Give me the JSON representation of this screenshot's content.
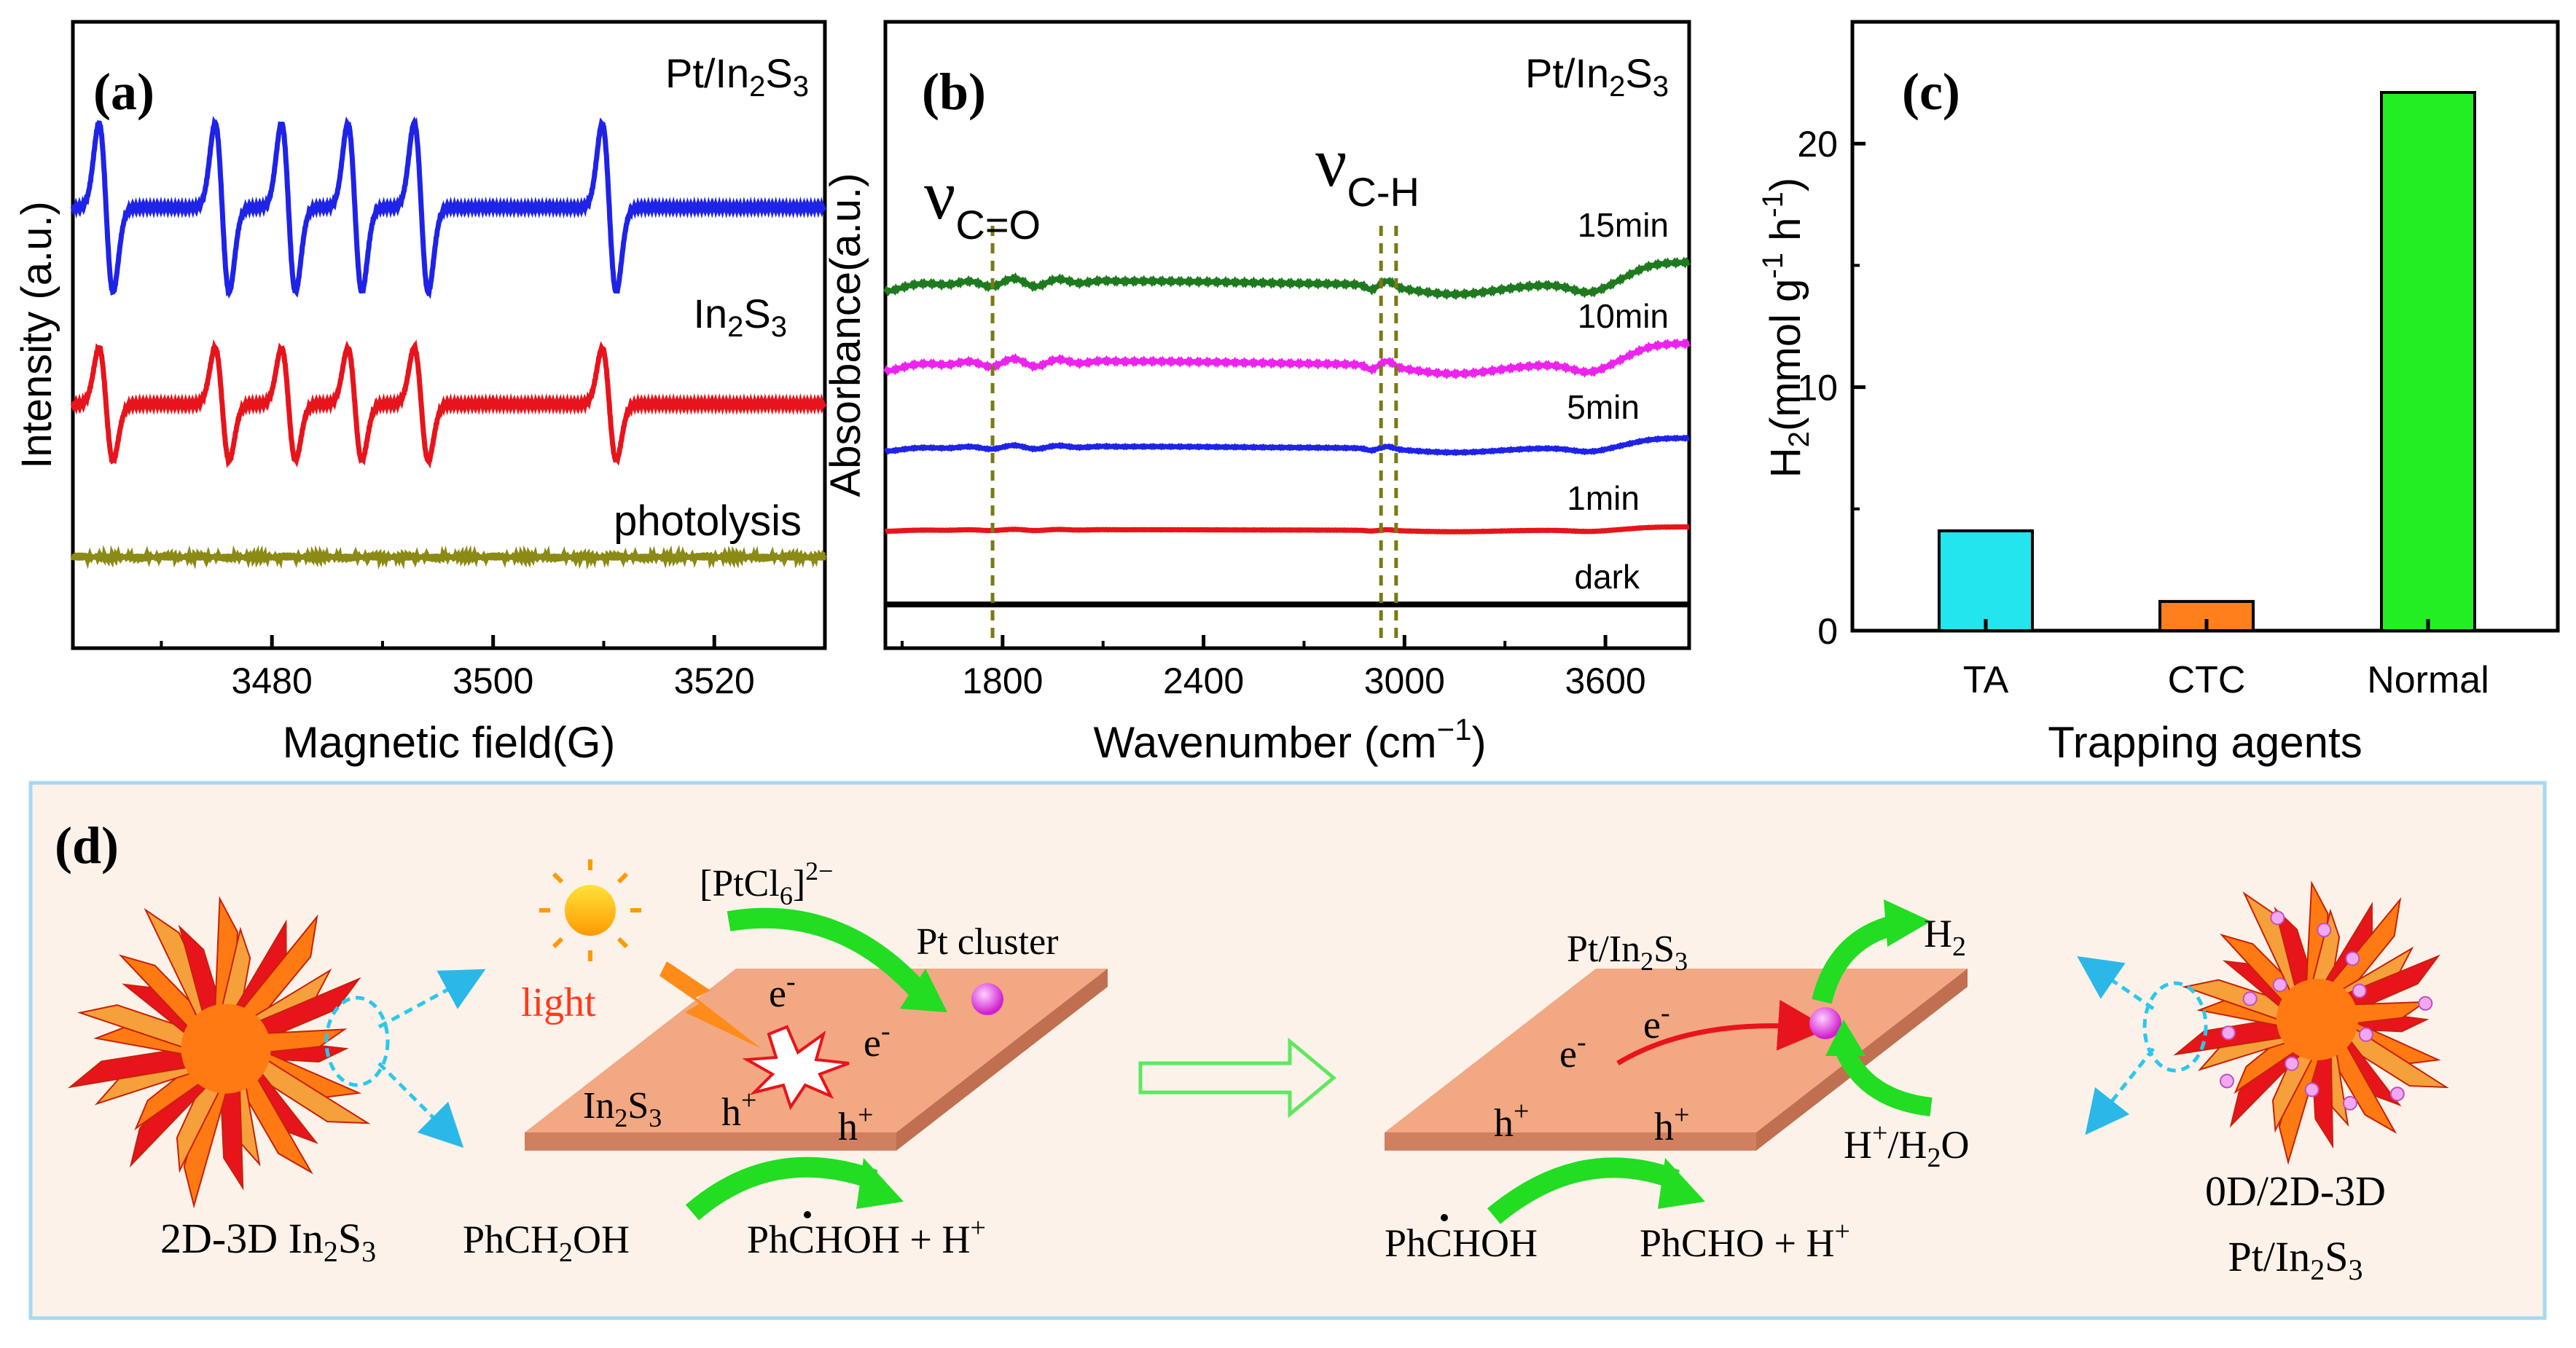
{
  "chart_data": [
    {
      "panel": "(a)",
      "type": "line",
      "xlabel": "Magnetic field(G)",
      "ylabel": "Intensity (a.u.)",
      "xlim": [
        3462,
        3530
      ],
      "xticks": [
        3480,
        3500,
        3520
      ],
      "yticks_shown": false,
      "series": [
        {
          "name": "Pt/In2S3",
          "color": "#1f23e8",
          "label_text": "Pt/In2S3",
          "offset": 2.2,
          "amplitude": 1.0,
          "lines": [
            3465,
            3475.5,
            3481.5,
            3487.5,
            3493.5,
            3510.5
          ]
        },
        {
          "name": "In2S3",
          "color": "#e8141b",
          "label_text": "In2S3",
          "offset": 1.1,
          "amplitude": 0.68,
          "lines": [
            3465,
            3475.5,
            3481.5,
            3487.5,
            3493.5,
            3510.5
          ]
        },
        {
          "name": "photolysis",
          "color": "#8a8a15",
          "label_text": "photolysis",
          "offset": 0.0,
          "amplitude": 0.0,
          "lines": []
        }
      ]
    },
    {
      "panel": "(b)",
      "type": "line",
      "title": "Pt/In2S3",
      "xlabel": "Wavenumber (cm−1)",
      "ylabel": "Absorbance(a.u.)",
      "xlim": [
        1450,
        3850
      ],
      "xticks": [
        1800,
        2400,
        3000,
        3600
      ],
      "annotations": [
        {
          "text": "ν",
          "sub": "C=O",
          "x_line": 1770
        },
        {
          "text": "ν",
          "sub": "C-H",
          "x_lines": [
            2930,
            2975
          ]
        }
      ],
      "series": [
        {
          "name": "15min",
          "color": "#1e7a1e",
          "offset": 4.0,
          "amplitude": 1.0
        },
        {
          "name": "10min",
          "color": "#ee22ee",
          "offset": 3.0,
          "amplitude": 0.95
        },
        {
          "name": "5min",
          "color": "#1f23e8",
          "offset": 2.0,
          "amplitude": 0.45
        },
        {
          "name": "1min",
          "color": "#e8141b",
          "offset": 1.0,
          "amplitude": 0.15
        },
        {
          "name": "dark",
          "color": "#000000",
          "offset": 0.0,
          "amplitude": 0.0
        }
      ]
    },
    {
      "panel": "(c)",
      "type": "bar",
      "xlabel": "Trapping agents",
      "ylabel": "H2(mmol g-1 h-1)",
      "ylim": [
        0,
        25
      ],
      "yticks": [
        0,
        10,
        20
      ],
      "categories": [
        "TA",
        "CTC",
        "Normal"
      ],
      "values": [
        4.1,
        1.2,
        22.1
      ],
      "colors": [
        "#22e5ee",
        "#ff7f1c",
        "#22ee22"
      ]
    }
  ],
  "panels": {
    "a_label": "(a)",
    "b_label": "(b)",
    "c_label": "(c)",
    "d_label": "(d)"
  },
  "scheme": {
    "left_particle_label": "2D-3D In2S3",
    "light": "light",
    "pt_precursor": "[PtCl6]2−",
    "pt_cluster": "Pt cluster",
    "electron": "e-",
    "hole": "h+",
    "in2s3": "In2S3",
    "reactant": "PhCH2OH",
    "radical_product": "PhCHOH + H+",
    "pt_in2s3": "Pt/In2S3",
    "h2": "H2",
    "h_source": "H+/H2O",
    "radical": "PhCHOH",
    "final_product": "PhCHO + H+",
    "right_particle_label_1": "0D/2D-3D",
    "right_particle_label_2": "Pt/In2S3",
    "colors": {
      "box_bg": "#fcf2ea",
      "box_border": "#a8d8f0",
      "sheet": "#f2a882",
      "arrow_green": "#22dd22"
    }
  }
}
